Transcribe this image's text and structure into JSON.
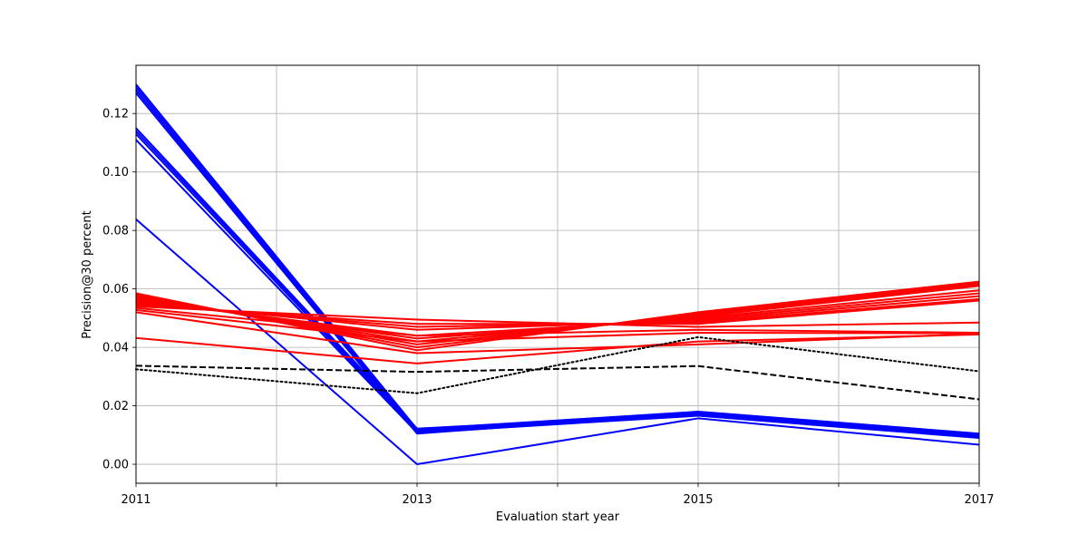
{
  "chart_data": {
    "type": "line",
    "title": "",
    "xlabel": "Evaluation start year",
    "ylabel": "Precision@30 percent",
    "x": [
      2011,
      2013,
      2015,
      2017
    ],
    "xlim": [
      2011,
      2017
    ],
    "ylim": [
      -0.0065,
      0.1365
    ],
    "x_ticks": [
      2011,
      2012,
      2013,
      2014,
      2015,
      2016,
      2017
    ],
    "x_tick_labels": [
      "2011",
      "",
      "2013",
      "",
      "2015",
      "",
      "2017"
    ],
    "y_ticks": [
      0.0,
      0.02,
      0.04,
      0.06,
      0.08,
      0.1,
      0.12
    ],
    "y_tick_labels": [
      "0.00",
      "0.02",
      "0.04",
      "0.06",
      "0.08",
      "0.10",
      "0.12"
    ],
    "grid": true,
    "colors": {
      "red": "#ff0000",
      "blue": "#0000ff",
      "black": "#000000"
    },
    "series": [
      {
        "color": "#0000ff",
        "style": "solid",
        "values": [
          0.13,
          0.012,
          0.018,
          0.0105
        ]
      },
      {
        "color": "#0000ff",
        "style": "solid",
        "values": [
          0.129,
          0.0115,
          0.0178,
          0.0102
        ]
      },
      {
        "color": "#0000ff",
        "style": "solid",
        "values": [
          0.128,
          0.011,
          0.0176,
          0.01
        ]
      },
      {
        "color": "#0000ff",
        "style": "solid",
        "values": [
          0.127,
          0.0105,
          0.0174,
          0.0098
        ]
      },
      {
        "color": "#0000ff",
        "style": "solid",
        "values": [
          0.115,
          0.0122,
          0.0172,
          0.0096
        ]
      },
      {
        "color": "#0000ff",
        "style": "solid",
        "values": [
          0.114,
          0.0118,
          0.017,
          0.0094
        ]
      },
      {
        "color": "#0000ff",
        "style": "solid",
        "values": [
          0.113,
          0.0112,
          0.0168,
          0.0092
        ]
      },
      {
        "color": "#0000ff",
        "style": "solid",
        "values": [
          0.111,
          0.0108,
          0.0166,
          0.009
        ]
      },
      {
        "color": "#0000ff",
        "style": "solid",
        "values": [
          0.0838,
          0.0,
          0.0157,
          0.0067
        ]
      },
      {
        "color": "#ff0000",
        "style": "solid",
        "values": [
          0.0585,
          0.039,
          0.052,
          0.0625
        ]
      },
      {
        "color": "#ff0000",
        "style": "solid",
        "values": [
          0.058,
          0.04,
          0.0515,
          0.062
        ]
      },
      {
        "color": "#ff0000",
        "style": "solid",
        "values": [
          0.0575,
          0.041,
          0.051,
          0.0615
        ]
      },
      {
        "color": "#ff0000",
        "style": "solid",
        "values": [
          0.057,
          0.042,
          0.0505,
          0.061
        ]
      },
      {
        "color": "#ff0000",
        "style": "solid",
        "values": [
          0.0565,
          0.043,
          0.05,
          0.0595
        ]
      },
      {
        "color": "#ff0000",
        "style": "solid",
        "values": [
          0.056,
          0.044,
          0.0495,
          0.0585
        ]
      },
      {
        "color": "#ff0000",
        "style": "solid",
        "values": [
          0.0555,
          0.046,
          0.049,
          0.0575
        ]
      },
      {
        "color": "#ff0000",
        "style": "solid",
        "values": [
          0.055,
          0.047,
          0.0485,
          0.0565
        ]
      },
      {
        "color": "#ff0000",
        "style": "solid",
        "values": [
          0.0545,
          0.048,
          0.048,
          0.056
        ]
      },
      {
        "color": "#ff0000",
        "style": "solid",
        "values": [
          0.054,
          0.0495,
          0.047,
          0.0485
        ]
      },
      {
        "color": "#ff0000",
        "style": "solid",
        "values": [
          0.0535,
          0.044,
          0.046,
          0.045
        ]
      },
      {
        "color": "#ff0000",
        "style": "solid",
        "values": [
          0.0528,
          0.042,
          0.045,
          0.0448
        ]
      },
      {
        "color": "#ff0000",
        "style": "solid",
        "values": [
          0.052,
          0.038,
          0.041,
          0.0446
        ]
      },
      {
        "color": "#ff0000",
        "style": "solid",
        "values": [
          0.0432,
          0.0345,
          0.042,
          0.0444
        ]
      },
      {
        "color": "#000000",
        "style": "dashed",
        "values": [
          0.0337,
          0.0316,
          0.0336,
          0.0222
        ]
      },
      {
        "color": "#000000",
        "style": "dotted",
        "values": [
          0.0325,
          0.0243,
          0.0435,
          0.0318
        ]
      }
    ]
  }
}
